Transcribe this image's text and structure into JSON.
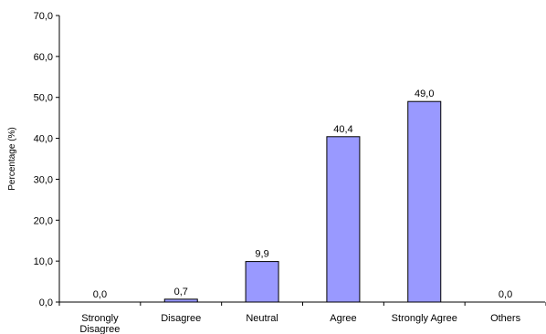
{
  "chart_data": {
    "type": "bar",
    "title": "",
    "xlabel": "",
    "ylabel": "Percentage (%)",
    "ylim": [
      0,
      70
    ],
    "yticks": [
      0,
      10,
      20,
      30,
      40,
      50,
      60,
      70
    ],
    "ytick_labels": [
      "0,0",
      "10,0",
      "20,0",
      "30,0",
      "40,0",
      "50,0",
      "60,0",
      "70,0"
    ],
    "categories": [
      "Strongly Disagree",
      "Disagree",
      "Neutral",
      "Agree",
      "Strongly Agree",
      "Others"
    ],
    "category_label_lines": [
      [
        "Strongly",
        "Disagree"
      ],
      [
        "Disagree"
      ],
      [
        "Neutral"
      ],
      [
        "Agree"
      ],
      [
        "Strongly Agree"
      ],
      [
        "Others"
      ]
    ],
    "values": [
      0.0,
      0.7,
      9.9,
      40.4,
      49.0,
      0.0
    ],
    "value_labels": [
      "0,0",
      "0,7",
      "9,9",
      "40,4",
      "49,0",
      "0,0"
    ],
    "grid": false,
    "legend": "none",
    "bar_color": "#9999ff",
    "bar_edge_color": "#000000"
  }
}
